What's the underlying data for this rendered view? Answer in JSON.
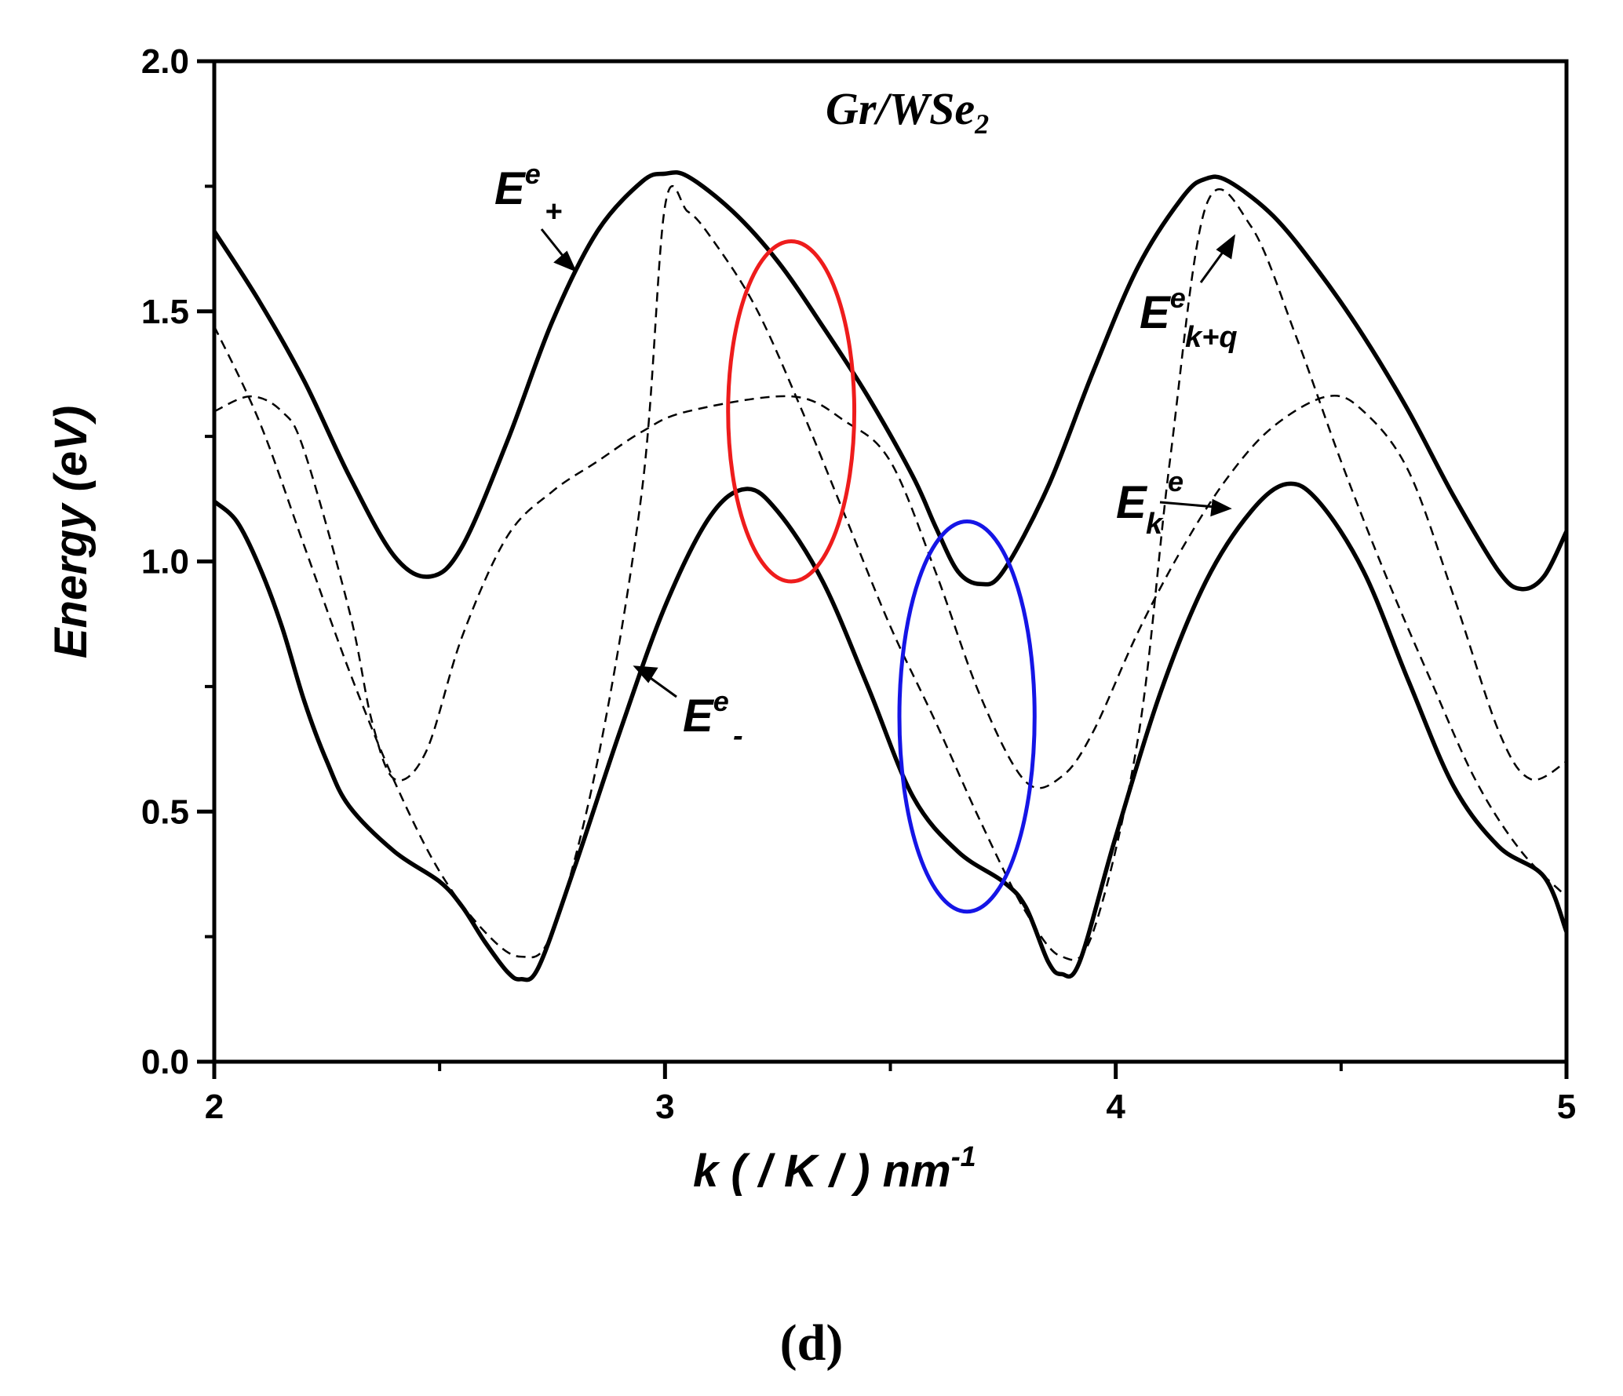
{
  "chart_data": {
    "type": "line",
    "title": "Gr/WSe2",
    "title_main": "Gr/WSe",
    "title_sub": "2",
    "xlabel": "k ( / K / ) nm-1",
    "xlabel_main": "k ( / K / ) nm",
    "xlabel_sup": "-1",
    "ylabel": "Energy (eV)",
    "panel_label": "(d)",
    "xlim": [
      2,
      5
    ],
    "ylim": [
      0,
      2
    ],
    "xticks": [
      2,
      3,
      4,
      5
    ],
    "xtick_labels": [
      "2",
      "3",
      "4",
      "5"
    ],
    "yticks": [
      0,
      0.5,
      1.0,
      1.5,
      2.0
    ],
    "ytick_labels": [
      "0.0",
      "0.5",
      "1.0",
      "1.5",
      "2.0"
    ],
    "grid": false,
    "series": [
      {
        "name": "E+e",
        "style": "solid",
        "color": "#000000",
        "points": [
          [
            2.0,
            1.66
          ],
          [
            2.1,
            1.52
          ],
          [
            2.2,
            1.36
          ],
          [
            2.3,
            1.17
          ],
          [
            2.4,
            1.01
          ],
          [
            2.48,
            0.97
          ],
          [
            2.55,
            1.03
          ],
          [
            2.65,
            1.24
          ],
          [
            2.75,
            1.48
          ],
          [
            2.85,
            1.66
          ],
          [
            2.95,
            1.76
          ],
          [
            3.0,
            1.775
          ],
          [
            3.05,
            1.77
          ],
          [
            3.15,
            1.7
          ],
          [
            3.25,
            1.6
          ],
          [
            3.35,
            1.47
          ],
          [
            3.45,
            1.33
          ],
          [
            3.55,
            1.17
          ],
          [
            3.6,
            1.07
          ],
          [
            3.65,
            0.98
          ],
          [
            3.7,
            0.955
          ],
          [
            3.75,
            0.98
          ],
          [
            3.85,
            1.15
          ],
          [
            3.95,
            1.38
          ],
          [
            4.05,
            1.59
          ],
          [
            4.15,
            1.73
          ],
          [
            4.2,
            1.765
          ],
          [
            4.25,
            1.76
          ],
          [
            4.35,
            1.69
          ],
          [
            4.45,
            1.58
          ],
          [
            4.55,
            1.45
          ],
          [
            4.65,
            1.3
          ],
          [
            4.75,
            1.13
          ],
          [
            4.85,
            0.98
          ],
          [
            4.9,
            0.945
          ],
          [
            4.95,
            0.97
          ],
          [
            5.0,
            1.06
          ]
        ]
      },
      {
        "name": "E-e",
        "style": "solid",
        "color": "#000000",
        "points": [
          [
            2.0,
            1.12
          ],
          [
            2.05,
            1.08
          ],
          [
            2.1,
            0.99
          ],
          [
            2.15,
            0.87
          ],
          [
            2.2,
            0.72
          ],
          [
            2.25,
            0.6
          ],
          [
            2.3,
            0.51
          ],
          [
            2.4,
            0.42
          ],
          [
            2.5,
            0.36
          ],
          [
            2.55,
            0.31
          ],
          [
            2.6,
            0.24
          ],
          [
            2.65,
            0.18
          ],
          [
            2.68,
            0.165
          ],
          [
            2.72,
            0.19
          ],
          [
            2.8,
            0.39
          ],
          [
            2.9,
            0.66
          ],
          [
            3.0,
            0.91
          ],
          [
            3.1,
            1.09
          ],
          [
            3.18,
            1.145
          ],
          [
            3.25,
            1.1
          ],
          [
            3.35,
            0.96
          ],
          [
            3.45,
            0.75
          ],
          [
            3.55,
            0.53
          ],
          [
            3.65,
            0.42
          ],
          [
            3.75,
            0.36
          ],
          [
            3.8,
            0.31
          ],
          [
            3.85,
            0.2
          ],
          [
            3.88,
            0.175
          ],
          [
            3.92,
            0.2
          ],
          [
            4.0,
            0.45
          ],
          [
            4.1,
            0.74
          ],
          [
            4.2,
            0.96
          ],
          [
            4.3,
            1.1
          ],
          [
            4.38,
            1.155
          ],
          [
            4.45,
            1.12
          ],
          [
            4.55,
            0.98
          ],
          [
            4.65,
            0.76
          ],
          [
            4.75,
            0.55
          ],
          [
            4.85,
            0.43
          ],
          [
            4.95,
            0.37
          ],
          [
            5.0,
            0.26
          ]
        ]
      },
      {
        "name": "Ek+qe",
        "style": "dashed",
        "color": "#000000",
        "points": [
          [
            2.0,
            1.47
          ],
          [
            2.1,
            1.28
          ],
          [
            2.2,
            1.03
          ],
          [
            2.3,
            0.78
          ],
          [
            2.4,
            0.56
          ],
          [
            2.5,
            0.38
          ],
          [
            2.6,
            0.26
          ],
          [
            2.68,
            0.21
          ],
          [
            2.75,
            0.26
          ],
          [
            2.85,
            0.6
          ],
          [
            2.95,
            1.15
          ],
          [
            3.0,
            1.71
          ],
          [
            3.05,
            1.7
          ],
          [
            3.1,
            1.65
          ],
          [
            3.2,
            1.51
          ],
          [
            3.3,
            1.31
          ],
          [
            3.4,
            1.09
          ],
          [
            3.5,
            0.87
          ],
          [
            3.6,
            0.68
          ],
          [
            3.7,
            0.48
          ],
          [
            3.8,
            0.3
          ],
          [
            3.88,
            0.21
          ],
          [
            3.95,
            0.26
          ],
          [
            4.05,
            0.65
          ],
          [
            4.12,
            1.2
          ],
          [
            4.2,
            1.71
          ],
          [
            4.3,
            1.67
          ],
          [
            4.4,
            1.45
          ],
          [
            4.5,
            1.2
          ],
          [
            4.6,
            0.97
          ],
          [
            4.7,
            0.76
          ],
          [
            4.8,
            0.56
          ],
          [
            4.9,
            0.42
          ],
          [
            5.0,
            0.33
          ]
        ]
      },
      {
        "name": "Eke",
        "style": "dashed",
        "color": "#000000",
        "points": [
          [
            2.0,
            1.3
          ],
          [
            2.08,
            1.33
          ],
          [
            2.15,
            1.3
          ],
          [
            2.2,
            1.22
          ],
          [
            2.3,
            0.9
          ],
          [
            2.35,
            0.68
          ],
          [
            2.4,
            0.565
          ],
          [
            2.47,
            0.62
          ],
          [
            2.55,
            0.85
          ],
          [
            2.65,
            1.05
          ],
          [
            2.75,
            1.14
          ],
          [
            2.85,
            1.2
          ],
          [
            2.95,
            1.26
          ],
          [
            3.05,
            1.3
          ],
          [
            3.28,
            1.33
          ],
          [
            3.4,
            1.28
          ],
          [
            3.5,
            1.2
          ],
          [
            3.6,
            0.98
          ],
          [
            3.7,
            0.73
          ],
          [
            3.8,
            0.56
          ],
          [
            3.88,
            0.57
          ],
          [
            3.95,
            0.66
          ],
          [
            4.05,
            0.86
          ],
          [
            4.15,
            1.03
          ],
          [
            4.25,
            1.17
          ],
          [
            4.35,
            1.27
          ],
          [
            4.47,
            1.33
          ],
          [
            4.55,
            1.3
          ],
          [
            4.65,
            1.18
          ],
          [
            4.75,
            0.93
          ],
          [
            4.85,
            0.66
          ],
          [
            4.92,
            0.565
          ],
          [
            5.0,
            0.6
          ]
        ]
      }
    ],
    "annotations": [
      {
        "main": "E",
        "sup": "e",
        "sub": "+"
      },
      {
        "main": "E",
        "sup": "e",
        "sub": "-"
      },
      {
        "main": "E",
        "sup": "e",
        "sub": "k+q"
      },
      {
        "main": "E",
        "sup": "e",
        "sub": "k"
      }
    ],
    "ellipses": [
      {
        "color": "#ee1c1c",
        "cx": 3.28,
        "cy": 1.3,
        "rx": 0.14,
        "ry": 0.34
      },
      {
        "color": "#1515e6",
        "cx": 3.67,
        "cy": 0.69,
        "rx": 0.15,
        "ry": 0.39
      }
    ]
  }
}
